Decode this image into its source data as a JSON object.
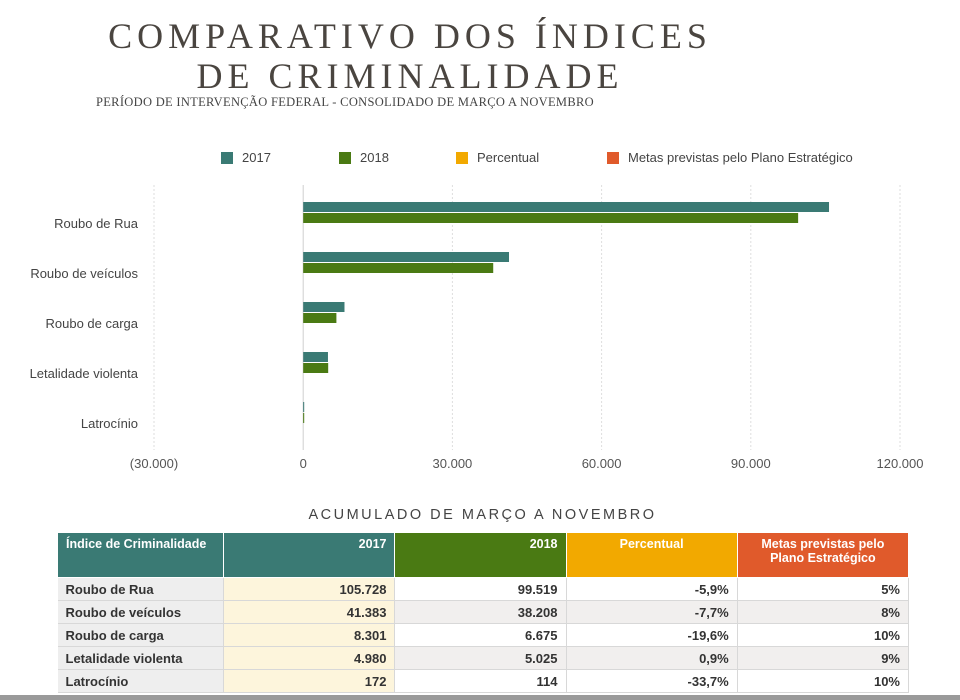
{
  "title_line1": "COMPARATIVO DOS ÍNDICES",
  "title_line2": "DE CRIMINALIDADE",
  "subtitle": "PERÍODO DE INTERVENÇÃO FEDERAL - CONSOLIDADO DE MARÇO A NOVEMBRO",
  "legend": [
    {
      "label": "2017",
      "color": "#3a7a74"
    },
    {
      "label": "2018",
      "color": "#4a7a13"
    },
    {
      "label": "Percentual",
      "color": "#f2a900"
    },
    {
      "label": "Metas previstas pelo Plano Estratégico",
      "color": "#e05a2b"
    }
  ],
  "chart_data": {
    "type": "bar",
    "orientation": "horizontal",
    "categories": [
      "Roubo de Rua",
      "Roubo de veículos",
      "Roubo de carga",
      "Letalidade violenta",
      "Latrocínio"
    ],
    "series": [
      {
        "name": "2017",
        "color": "#3a7a74",
        "values": [
          105728,
          41383,
          8301,
          4980,
          172
        ]
      },
      {
        "name": "2018",
        "color": "#4a7a13",
        "values": [
          99519,
          38208,
          6675,
          5025,
          114
        ]
      }
    ],
    "xlim": [
      -30000,
      120000
    ],
    "xticks": [
      -30000,
      0,
      30000,
      60000,
      90000,
      120000
    ],
    "xtick_labels": [
      "(30.000)",
      "0",
      "30.000",
      "60.000",
      "90.000",
      "120.000"
    ],
    "grid": true,
    "legend_position": "top",
    "title": "COMPARATIVO DOS ÍNDICES DE CRIMINALIDADE"
  },
  "table": {
    "caption": "ACUMULADO DE MARÇO A NOVEMBRO",
    "headers": [
      {
        "label": "Índice de Criminalidade",
        "color": "#3a7a74"
      },
      {
        "label": "2017",
        "color": "#3a7a74"
      },
      {
        "label": "2018",
        "color": "#4a7a13"
      },
      {
        "label": "Percentual",
        "color": "#f2a900"
      },
      {
        "label": "Metas previstas pelo Plano Estratégico",
        "color": "#e05a2b"
      }
    ],
    "rows": [
      [
        "Roubo de Rua",
        "105.728",
        "99.519",
        "-5,9%",
        "5%"
      ],
      [
        "Roubo de veículos",
        "41.383",
        "38.208",
        "-7,7%",
        "8%"
      ],
      [
        "Roubo de carga",
        "8.301",
        "6.675",
        "-19,6%",
        "10%"
      ],
      [
        "Letalidade violenta",
        "4.980",
        "5.025",
        "0,9%",
        "9%"
      ],
      [
        "Latrocínio",
        "172",
        "114",
        "-33,7%",
        "10%"
      ]
    ]
  }
}
